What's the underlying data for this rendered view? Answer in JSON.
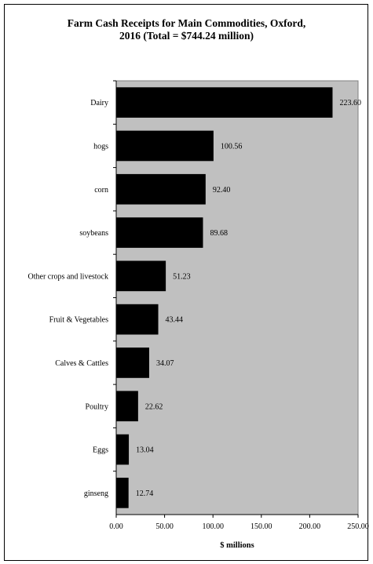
{
  "chart_data": {
    "type": "bar",
    "orientation": "horizontal",
    "title": "Farm Cash Receipts for Main Commodities, Oxford,\n2016 (Total = $744.24 million)",
    "xlabel": "$ millions",
    "ylabel": "",
    "xlim": [
      0,
      250
    ],
    "x_ticks": [
      "0.00",
      "50.00",
      "100.00",
      "150.00",
      "200.00",
      "250.00"
    ],
    "categories": [
      "Dairy",
      "hogs",
      "corn",
      "soybeans",
      "Other crops and livestock",
      "Fruit & Vegetables",
      "Calves & Cattles",
      "Poultry",
      "Eggs",
      "ginseng"
    ],
    "values": [
      223.6,
      100.56,
      92.4,
      89.68,
      51.23,
      43.44,
      34.07,
      22.62,
      13.04,
      12.74
    ],
    "value_labels": [
      "223.60",
      "100.56",
      "92.40",
      "89.68",
      "51.23",
      "43.44",
      "34.07",
      "22.62",
      "13.04",
      "12.74"
    ],
    "grid": false,
    "legend": "none",
    "colors": {
      "bar": "#000000",
      "plot_background": "#c0c0c0",
      "page_background": "#ffffff"
    }
  }
}
